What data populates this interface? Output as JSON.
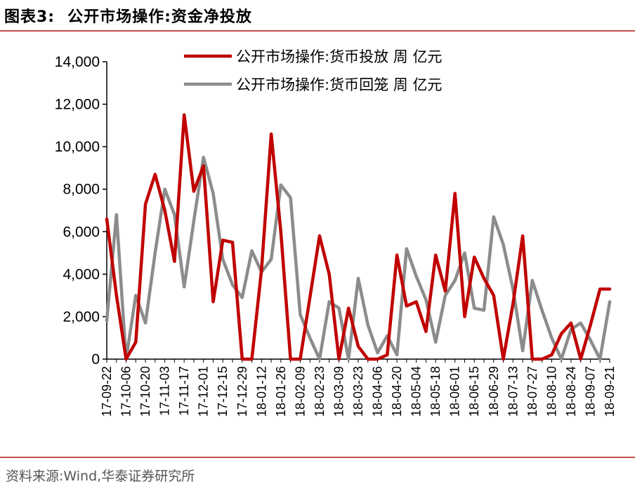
{
  "figure": {
    "label": "图表3:",
    "title": "公开市场操作:资金净投放",
    "source": "资料来源:Wind,华泰证券研究所"
  },
  "colors": {
    "series1": "#c00000",
    "series2": "#8c8c8c",
    "rule": "#c0504d"
  },
  "chart_data": {
    "type": "line",
    "title": "",
    "xlabel": "",
    "ylabel": "",
    "ylim": [
      0,
      14000
    ],
    "yticks": [
      0,
      2000,
      4000,
      6000,
      8000,
      10000,
      12000,
      14000
    ],
    "ytick_labels": [
      "0",
      "2,000",
      "4,000",
      "6,000",
      "8,000",
      "10,000",
      "12,000",
      "14,000"
    ],
    "x": [
      "17-09-22",
      "17-09-29",
      "17-10-06",
      "17-10-13",
      "17-10-20",
      "17-10-27",
      "17-11-03",
      "17-11-10",
      "17-11-17",
      "17-11-24",
      "17-12-01",
      "17-12-08",
      "17-12-15",
      "17-12-22",
      "17-12-29",
      "18-01-05",
      "18-01-12",
      "18-01-19",
      "18-01-26",
      "18-02-02",
      "18-02-09",
      "18-02-16",
      "18-02-23",
      "18-03-02",
      "18-03-09",
      "18-03-16",
      "18-03-23",
      "18-03-30",
      "18-04-06",
      "18-04-13",
      "18-04-20",
      "18-04-27",
      "18-05-04",
      "18-05-11",
      "18-05-18",
      "18-05-25",
      "18-06-01",
      "18-06-08",
      "18-06-15",
      "18-06-22",
      "18-06-29",
      "18-07-06",
      "18-07-13",
      "18-07-20",
      "18-07-27",
      "18-08-03",
      "18-08-10",
      "18-08-17",
      "18-08-24",
      "18-08-31",
      "18-09-07",
      "18-09-14",
      "18-09-21"
    ],
    "x_tick_labels": [
      "17-09-22",
      "17-10-06",
      "17-10-20",
      "17-11-03",
      "17-11-17",
      "17-12-01",
      "17-12-15",
      "17-12-29",
      "18-01-12",
      "18-01-26",
      "18-02-09",
      "18-02-23",
      "18-03-09",
      "18-03-23",
      "18-04-06",
      "18-04-20",
      "18-05-04",
      "18-05-18",
      "18-06-01",
      "18-06-15",
      "18-06-29",
      "18-07-13",
      "18-07-27",
      "18-08-10",
      "18-08-24",
      "18-09-07",
      "18-09-21"
    ],
    "grid": false,
    "legend_position": "top-right",
    "series": [
      {
        "name": "公开市场操作:货币投放 周 亿元",
        "values": [
          6600,
          3000,
          0,
          800,
          7300,
          8700,
          7000,
          4600,
          11500,
          7900,
          9100,
          2700,
          5600,
          5500,
          0,
          0,
          4200,
          10600,
          6000,
          0,
          0,
          2900,
          5800,
          4000,
          0,
          2400,
          600,
          0,
          0,
          200,
          4900,
          2500,
          2700,
          1300,
          4900,
          3200,
          7800,
          2000,
          4800,
          3800,
          3000,
          0,
          2600,
          5800,
          0,
          0,
          200,
          1200,
          1700,
          0,
          1600,
          3300,
          3300
        ]
      },
      {
        "name": "公开市场操作:货币回笼 周 亿元",
        "values": [
          1800,
          6800,
          0,
          3000,
          1700,
          5000,
          8000,
          6800,
          3400,
          6500,
          9500,
          7800,
          4700,
          3500,
          2900,
          5100,
          4100,
          4700,
          8200,
          7600,
          2100,
          1000,
          0,
          2700,
          2400,
          0,
          3800,
          1600,
          300,
          1100,
          200,
          5200,
          3900,
          2800,
          800,
          3000,
          3700,
          5000,
          2400,
          2300,
          6700,
          5400,
          3300,
          400,
          3700,
          2300,
          1000,
          0,
          1400,
          1700,
          900,
          0,
          2700
        ]
      }
    ]
  }
}
